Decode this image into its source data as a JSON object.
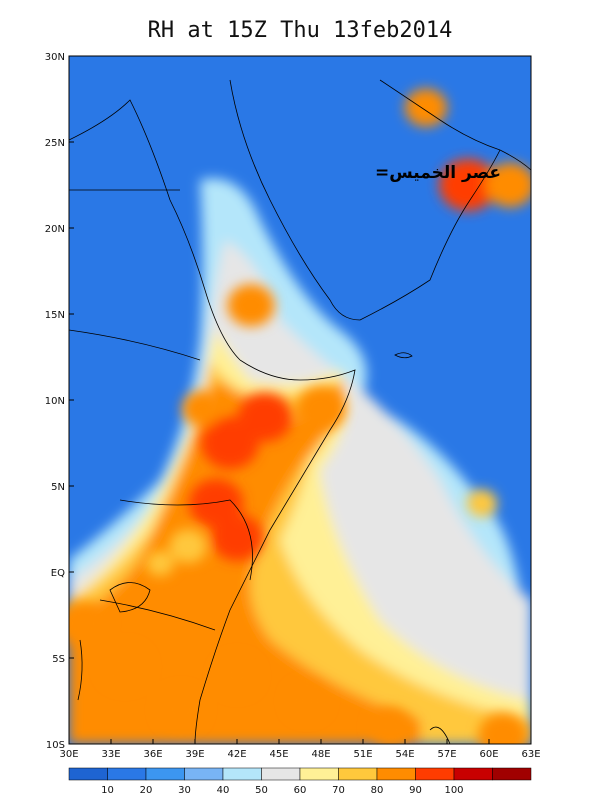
{
  "title": "RH at 15Z Thu 13feb2014",
  "annotation": "عصر الخميس=",
  "chart_data": {
    "type": "heatmap",
    "variable": "RH",
    "x_ticks": [
      "30E",
      "33E",
      "36E",
      "39E",
      "42E",
      "45E",
      "48E",
      "51E",
      "54E",
      "57E",
      "60E",
      "63E"
    ],
    "y_ticks": [
      "30N",
      "25N",
      "20N",
      "15N",
      "10N",
      "5N",
      "EQ",
      "5S",
      "10S"
    ],
    "lon_range": [
      30,
      63
    ],
    "lat_range": [
      -10,
      30
    ],
    "colorbar_ticks": [
      "10",
      "20",
      "30",
      "40",
      "50",
      "60",
      "70",
      "80",
      "90",
      "100"
    ],
    "levels": [
      0,
      10,
      20,
      30,
      40,
      50,
      60,
      70,
      80,
      90,
      100,
      110
    ],
    "colors": [
      "#1e64d2",
      "#2a78e6",
      "#3c96f0",
      "#78b4f5",
      "#b4e6fa",
      "#e6e6e6",
      "#fff096",
      "#ffc83c",
      "#ff8c00",
      "#ff3c00",
      "#c80000",
      "#a00000"
    ],
    "humid_regions": [
      {
        "lon": 41.5,
        "lat": 7.5,
        "rh": 95
      },
      {
        "lon": 40.5,
        "lat": 4.0,
        "rh": 92
      },
      {
        "lon": 42.0,
        "lat": 2.0,
        "rh": 90
      },
      {
        "lon": 44.0,
        "lat": 9.0,
        "rh": 92
      },
      {
        "lon": 48.0,
        "lat": 9.5,
        "rh": 88
      },
      {
        "lon": 39.5,
        "lat": 9.5,
        "rh": 80
      },
      {
        "lon": 38.5,
        "lat": 1.5,
        "rh": 78
      },
      {
        "lon": 31.0,
        "lat": -3.0,
        "rh": 88
      },
      {
        "lon": 34.0,
        "lat": -5.5,
        "rh": 86
      },
      {
        "lon": 38.0,
        "lat": -8.0,
        "rh": 85
      },
      {
        "lon": 42.0,
        "lat": -6.0,
        "rh": 82
      },
      {
        "lon": 47.0,
        "lat": -7.5,
        "rh": 80
      },
      {
        "lon": 53.0,
        "lat": -9.0,
        "rh": 82
      },
      {
        "lon": 61.0,
        "lat": -9.5,
        "rh": 88
      },
      {
        "lon": 43.0,
        "lat": 15.5,
        "rh": 86
      },
      {
        "lon": 58.5,
        "lat": 22.5,
        "rh": 95
      },
      {
        "lon": 61.5,
        "lat": 22.5,
        "rh": 88
      },
      {
        "lon": 55.5,
        "lat": 27.0,
        "rh": 82
      },
      {
        "lon": 59.5,
        "lat": 4.0,
        "rh": 72
      },
      {
        "lon": 36.5,
        "lat": 0.5,
        "rh": 70
      }
    ]
  }
}
